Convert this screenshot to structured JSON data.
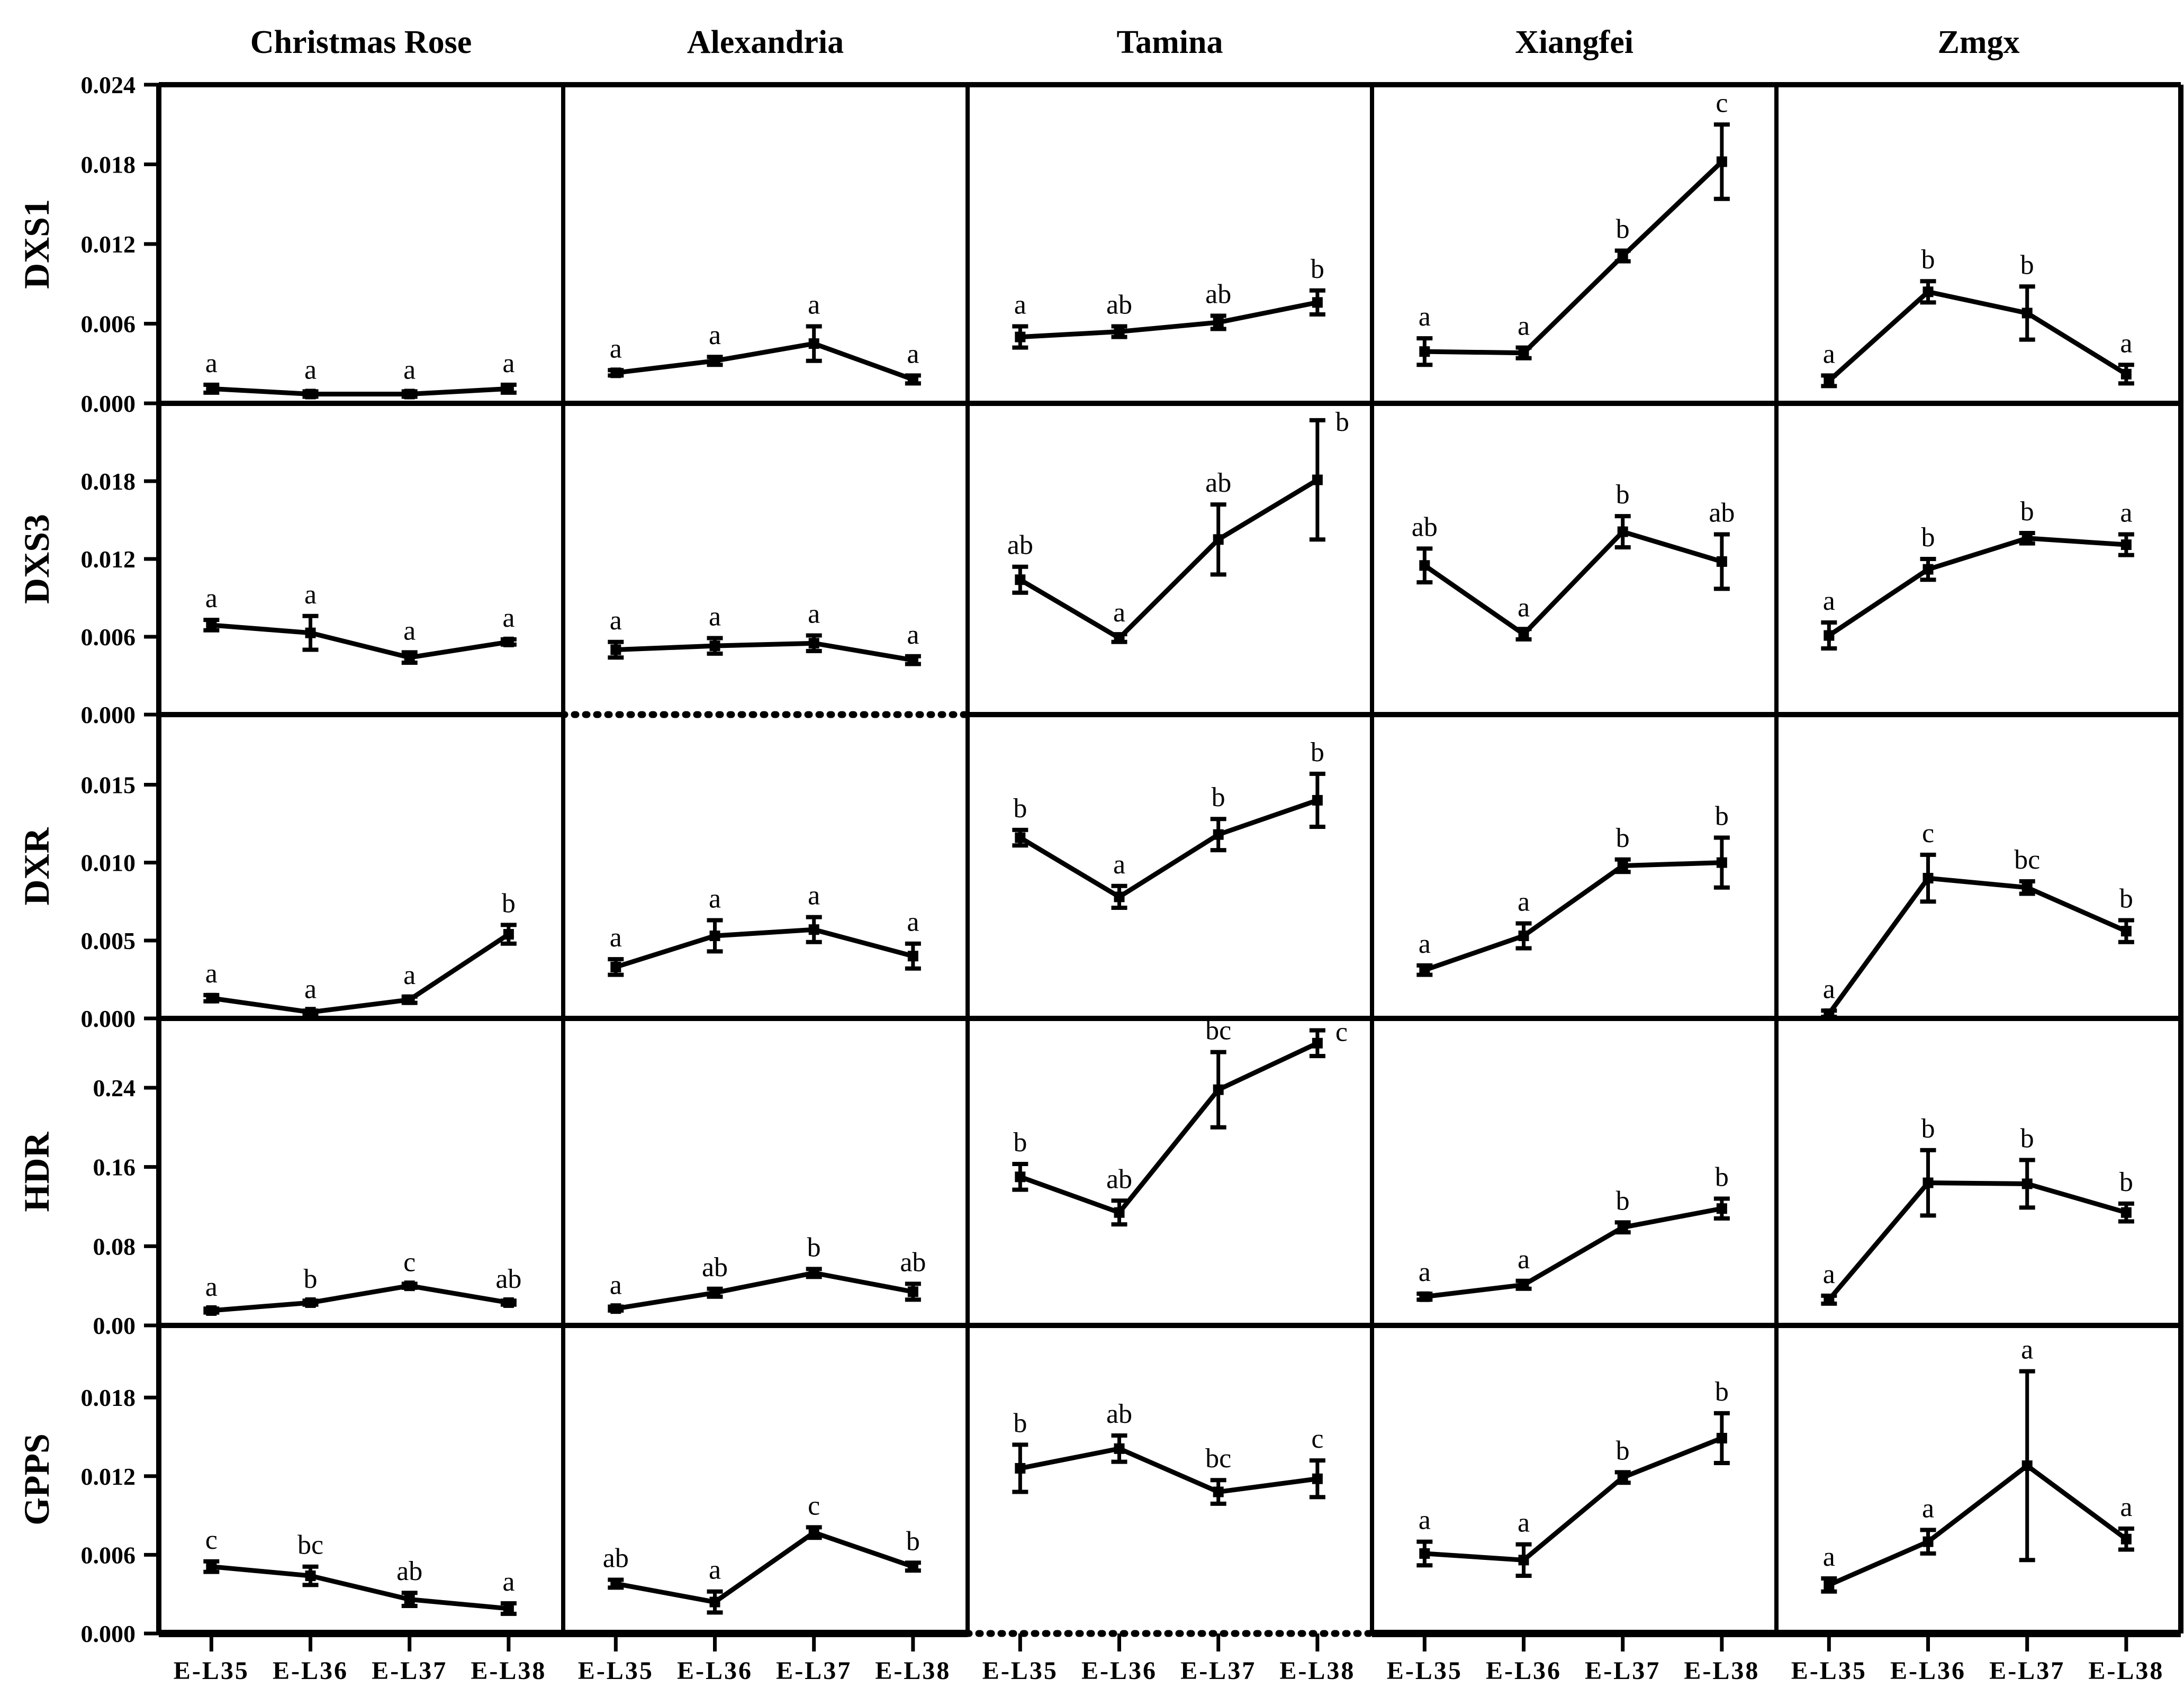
{
  "figure": {
    "background_color": "#ffffff",
    "ink_color": "#000000",
    "column_titles": [
      "Christmas Rose",
      "Alexandria",
      "Tamina",
      "Xiangfei",
      "Zmgx"
    ],
    "row_gene_labels": [
      "DXS1",
      "DXS3",
      "DXR",
      "HDR",
      "GPPS"
    ],
    "x_categories": [
      "E-L35",
      "E-L36",
      "E-L37",
      "E-L38"
    ]
  },
  "chart_data": [
    {
      "type": "line",
      "gene": "DXS1",
      "x": [
        "E-L35",
        "E-L36",
        "E-L37",
        "E-L38"
      ],
      "ylim": [
        0,
        0.024
      ],
      "yticks": [
        {
          "value": 0.024,
          "label": "0.024"
        },
        {
          "value": 0.018,
          "label": "0.018"
        },
        {
          "value": 0.012,
          "label": "0.012"
        },
        {
          "value": 0.006,
          "label": "0.006"
        },
        {
          "value": 0.0,
          "label": "0.000"
        }
      ],
      "series": [
        {
          "name": "Christmas Rose",
          "values": [
            0.0011,
            0.0007,
            0.0007,
            0.0011
          ],
          "errors": [
            0.0003,
            0.0002,
            0.0002,
            0.0003
          ],
          "letters": [
            "a",
            "a",
            "a",
            "a"
          ],
          "baseline_dotted": false
        },
        {
          "name": "Alexandria",
          "values": [
            0.0023,
            0.0032,
            0.0045,
            0.0018
          ],
          "errors": [
            0.0002,
            0.0003,
            0.0013,
            0.0003
          ],
          "letters": [
            "a",
            "a",
            "a",
            "a"
          ],
          "baseline_dotted": false
        },
        {
          "name": "Tamina",
          "values": [
            0.005,
            0.0054,
            0.0061,
            0.0076
          ],
          "errors": [
            0.0008,
            0.0004,
            0.0005,
            0.0009
          ],
          "letters": [
            "a",
            "ab",
            "ab",
            "b"
          ],
          "baseline_dotted": false
        },
        {
          "name": "Xiangfei",
          "values": [
            0.0039,
            0.0038,
            0.0111,
            0.0182
          ],
          "errors": [
            0.001,
            0.0004,
            0.0004,
            0.0028
          ],
          "letters": [
            "a",
            "a",
            "b",
            "c"
          ],
          "baseline_dotted": false
        },
        {
          "name": "Zmgx",
          "values": [
            0.0017,
            0.0084,
            0.0068,
            0.0022
          ],
          "errors": [
            0.0004,
            0.0008,
            0.002,
            0.0007
          ],
          "letters": [
            "a",
            "b",
            "b",
            "a"
          ],
          "baseline_dotted": false
        }
      ]
    },
    {
      "type": "line",
      "gene": "DXS3",
      "x": [
        "E-L35",
        "E-L36",
        "E-L37",
        "E-L38"
      ],
      "ylim": [
        0,
        0.024
      ],
      "yticks": [
        {
          "value": 0.018,
          "label": "0.018"
        },
        {
          "value": 0.012,
          "label": "0.012"
        },
        {
          "value": 0.006,
          "label": "0.006"
        },
        {
          "value": 0.0,
          "label": "0.000"
        }
      ],
      "series": [
        {
          "name": "Christmas Rose",
          "values": [
            0.0069,
            0.0063,
            0.0044,
            0.0056
          ],
          "errors": [
            0.0004,
            0.0013,
            0.0004,
            0.0002
          ],
          "letters": [
            "a",
            "a",
            "a",
            "a"
          ],
          "baseline_dotted": false
        },
        {
          "name": "Alexandria",
          "values": [
            0.005,
            0.0053,
            0.0055,
            0.0042
          ],
          "errors": [
            0.0006,
            0.0006,
            0.0006,
            0.0003
          ],
          "letters": [
            "a",
            "a",
            "a",
            "a"
          ],
          "baseline_dotted": true
        },
        {
          "name": "Tamina",
          "values": [
            0.0104,
            0.0059,
            0.0135,
            0.0181
          ],
          "errors": [
            0.001,
            0.0003,
            0.0027,
            0.0046
          ],
          "letters": [
            "ab",
            "a",
            "ab",
            "b"
          ],
          "baseline_dotted": false
        },
        {
          "name": "Xiangfei",
          "values": [
            0.0115,
            0.0062,
            0.0141,
            0.0118
          ],
          "errors": [
            0.0013,
            0.0004,
            0.0012,
            0.0021
          ],
          "letters": [
            "ab",
            "a",
            "b",
            "ab"
          ],
          "baseline_dotted": false
        },
        {
          "name": "Zmgx",
          "values": [
            0.0061,
            0.0112,
            0.0136,
            0.0131
          ],
          "errors": [
            0.001,
            0.0008,
            0.0004,
            0.0008
          ],
          "letters": [
            "a",
            "b",
            "b",
            "a"
          ],
          "baseline_dotted": false
        }
      ]
    },
    {
      "type": "line",
      "gene": "DXR",
      "x": [
        "E-L35",
        "E-L36",
        "E-L37",
        "E-L38"
      ],
      "ylim": [
        0,
        0.0195
      ],
      "yticks": [
        {
          "value": 0.015,
          "label": "0.015"
        },
        {
          "value": 0.01,
          "label": "0.010"
        },
        {
          "value": 0.005,
          "label": "0.005"
        },
        {
          "value": 0.0,
          "label": "0.000"
        }
      ],
      "series": [
        {
          "name": "Christmas Rose",
          "values": [
            0.0013,
            0.0004,
            0.0012,
            0.0054
          ],
          "errors": [
            0.0002,
            0.0001,
            0.0002,
            0.0006
          ],
          "letters": [
            "a",
            "a",
            "a",
            "b"
          ],
          "baseline_dotted": false
        },
        {
          "name": "Alexandria",
          "values": [
            0.0033,
            0.0053,
            0.0057,
            0.004
          ],
          "errors": [
            0.0005,
            0.001,
            0.0008,
            0.0008
          ],
          "letters": [
            "a",
            "a",
            "a",
            "a"
          ],
          "baseline_dotted": false
        },
        {
          "name": "Tamina",
          "values": [
            0.0116,
            0.0078,
            0.0118,
            0.014
          ],
          "errors": [
            0.0005,
            0.0007,
            0.001,
            0.0017
          ],
          "letters": [
            "b",
            "a",
            "b",
            "b"
          ],
          "baseline_dotted": false
        },
        {
          "name": "Xiangfei",
          "values": [
            0.0031,
            0.0053,
            0.0098,
            0.01
          ],
          "errors": [
            0.0003,
            0.0008,
            0.0004,
            0.0016
          ],
          "letters": [
            "a",
            "a",
            "b",
            "b"
          ],
          "baseline_dotted": false
        },
        {
          "name": "Zmgx",
          "values": [
            0.0003,
            0.009,
            0.0084,
            0.0056
          ],
          "errors": [
            0.0002,
            0.0015,
            0.0004,
            0.0007
          ],
          "letters": [
            "a",
            "c",
            "bc",
            "b"
          ],
          "baseline_dotted": false
        }
      ]
    },
    {
      "type": "line",
      "gene": "HDR",
      "x": [
        "E-L35",
        "E-L36",
        "E-L37",
        "E-L38"
      ],
      "ylim": [
        0,
        0.31
      ],
      "yticks": [
        {
          "value": 0.24,
          "label": "0.24"
        },
        {
          "value": 0.16,
          "label": "0.16"
        },
        {
          "value": 0.08,
          "label": "0.08"
        },
        {
          "value": 0.0,
          "label": "0.00"
        }
      ],
      "series": [
        {
          "name": "Christmas Rose",
          "values": [
            0.015,
            0.023,
            0.04,
            0.023
          ],
          "errors": [
            0.002,
            0.002,
            0.002,
            0.002
          ],
          "letters": [
            "a",
            "b",
            "c",
            "ab"
          ],
          "baseline_dotted": false
        },
        {
          "name": "Alexandria",
          "values": [
            0.017,
            0.033,
            0.053,
            0.034
          ],
          "errors": [
            0.002,
            0.004,
            0.004,
            0.008
          ],
          "letters": [
            "a",
            "ab",
            "b",
            "ab"
          ],
          "baseline_dotted": false
        },
        {
          "name": "Tamina",
          "values": [
            0.15,
            0.114,
            0.238,
            0.285
          ],
          "errors": [
            0.013,
            0.012,
            0.038,
            0.013
          ],
          "letters": [
            "b",
            "ab",
            "bc",
            "c"
          ],
          "baseline_dotted": false
        },
        {
          "name": "Xiangfei",
          "values": [
            0.029,
            0.041,
            0.099,
            0.118
          ],
          "errors": [
            0.003,
            0.004,
            0.005,
            0.01
          ],
          "letters": [
            "a",
            "a",
            "b",
            "b"
          ],
          "baseline_dotted": false
        },
        {
          "name": "Zmgx",
          "values": [
            0.026,
            0.144,
            0.143,
            0.114
          ],
          "errors": [
            0.004,
            0.033,
            0.024,
            0.009
          ],
          "letters": [
            "a",
            "b",
            "b",
            "b"
          ],
          "baseline_dotted": false
        }
      ]
    },
    {
      "type": "line",
      "gene": "GPPS",
      "x": [
        "E-L35",
        "E-L36",
        "E-L37",
        "E-L38"
      ],
      "ylim": [
        0,
        0.0235
      ],
      "yticks": [
        {
          "value": 0.018,
          "label": "0.018"
        },
        {
          "value": 0.012,
          "label": "0.012"
        },
        {
          "value": 0.006,
          "label": "0.006"
        },
        {
          "value": 0.0,
          "label": "0.000"
        }
      ],
      "series": [
        {
          "name": "Christmas Rose",
          "values": [
            0.0051,
            0.0044,
            0.0026,
            0.0019
          ],
          "errors": [
            0.0004,
            0.0007,
            0.0005,
            0.0004
          ],
          "letters": [
            "c",
            "bc",
            "ab",
            "a"
          ],
          "baseline_dotted": false
        },
        {
          "name": "Alexandria",
          "values": [
            0.0038,
            0.0024,
            0.0077,
            0.0051
          ],
          "errors": [
            0.0003,
            0.0008,
            0.0004,
            0.0003
          ],
          "letters": [
            "ab",
            "a",
            "c",
            "b"
          ],
          "baseline_dotted": false
        },
        {
          "name": "Tamina",
          "values": [
            0.0126,
            0.0141,
            0.0108,
            0.0118
          ],
          "errors": [
            0.0018,
            0.001,
            0.0009,
            0.0014
          ],
          "letters": [
            "b",
            "ab",
            "bc",
            "c"
          ],
          "baseline_dotted": true
        },
        {
          "name": "Xiangfei",
          "values": [
            0.0061,
            0.0056,
            0.0119,
            0.0149
          ],
          "errors": [
            0.0009,
            0.0012,
            0.0004,
            0.0019
          ],
          "letters": [
            "a",
            "a",
            "b",
            "b"
          ],
          "baseline_dotted": false
        },
        {
          "name": "Zmgx",
          "values": [
            0.0037,
            0.007,
            0.0128,
            0.0072
          ],
          "errors": [
            0.0005,
            0.0009,
            0.0072,
            0.0008
          ],
          "letters": [
            "a",
            "a",
            "a",
            "a"
          ],
          "baseline_dotted": false
        }
      ]
    }
  ]
}
